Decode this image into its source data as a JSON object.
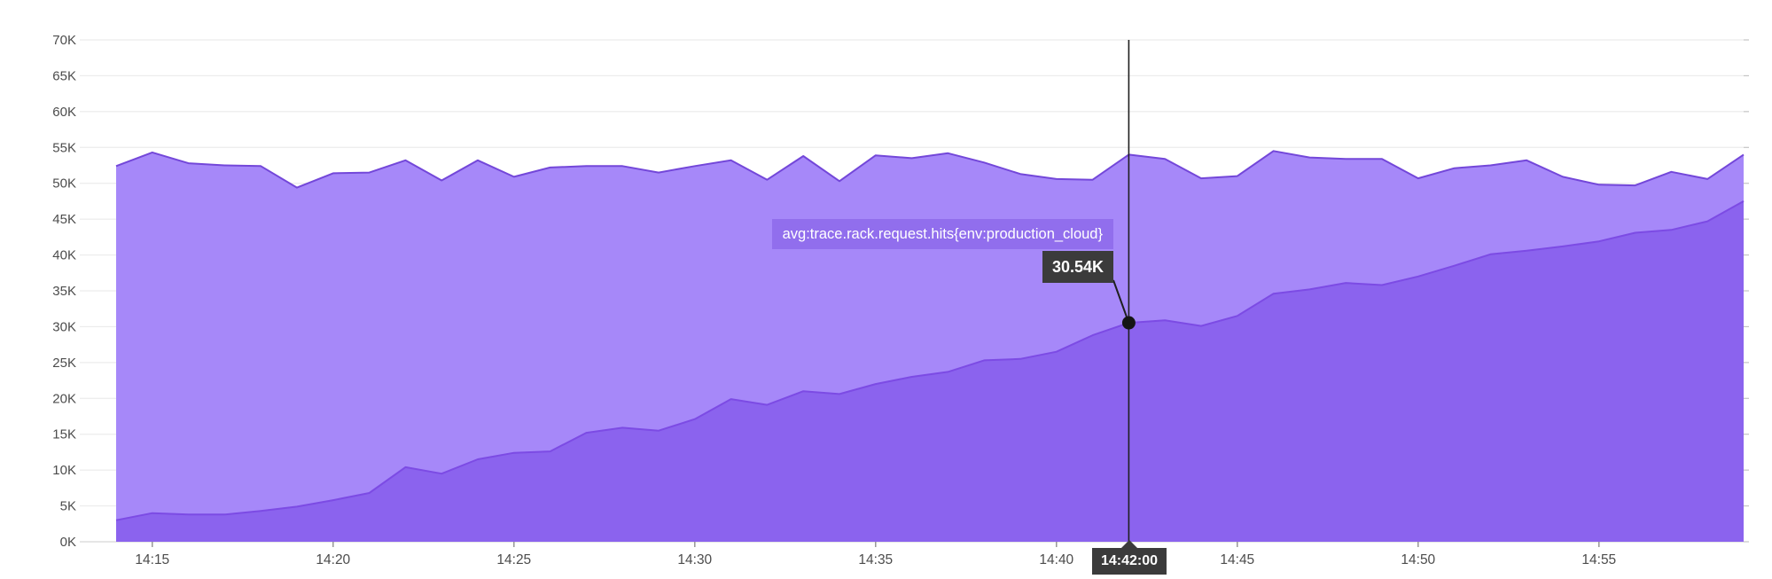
{
  "colors": {
    "background": "#ffffff",
    "grid_line": "#ececec",
    "axis_line": "#d6d6d6",
    "axis_text": "#4c4c4c",
    "tick_mark": "#8f8f8f",
    "crosshair": "#1f1f1f",
    "badge_bg": "#3b3b3b",
    "metric_label_bg": "rgba(143,107,235,0.92)"
  },
  "tooltip": {
    "metric_label": "avg:trace.rack.request.hits{env:production_cloud}",
    "value_label": "30.54K",
    "time_label": "14:42:00"
  },
  "chart_data": {
    "type": "area",
    "title": "",
    "xlabel": "",
    "ylabel": "",
    "unit": "K (thousands of hits)",
    "grid": true,
    "legend": "none",
    "ylim": [
      0,
      70
    ],
    "ytick_labels": [
      "0K",
      "5K",
      "10K",
      "15K",
      "20K",
      "25K",
      "30K",
      "35K",
      "40K",
      "45K",
      "50K",
      "55K",
      "60K",
      "65K",
      "70K"
    ],
    "xtick_labels": [
      "14:15",
      "14:20",
      "14:25",
      "14:30",
      "14:35",
      "14:40",
      "14:45",
      "14:50",
      "14:55"
    ],
    "x": [
      "14:14",
      "14:15",
      "14:16",
      "14:17",
      "14:18",
      "14:19",
      "14:20",
      "14:21",
      "14:22",
      "14:23",
      "14:24",
      "14:25",
      "14:26",
      "14:27",
      "14:28",
      "14:29",
      "14:30",
      "14:31",
      "14:32",
      "14:33",
      "14:34",
      "14:35",
      "14:36",
      "14:37",
      "14:38",
      "14:39",
      "14:40",
      "14:41",
      "14:42",
      "14:43",
      "14:44",
      "14:45",
      "14:46",
      "14:47",
      "14:48",
      "14:49",
      "14:50",
      "14:51",
      "14:52",
      "14:53",
      "14:54",
      "14:55",
      "14:56",
      "14:57",
      "14:58",
      "14:59"
    ],
    "series": [
      {
        "id": "total-request-hits",
        "name": "",
        "fill": "#a688f9",
        "stroke": "#7347d9",
        "values": [
          52.4,
          54.3,
          52.8,
          52.5,
          52.4,
          49.4,
          51.4,
          51.5,
          53.2,
          50.4,
          53.2,
          50.9,
          52.2,
          52.4,
          52.4,
          51.5,
          52.4,
          53.2,
          50.5,
          53.8,
          50.3,
          53.9,
          53.5,
          54.2,
          52.9,
          51.3,
          50.6,
          50.5,
          54.0,
          53.4,
          50.7,
          51.0,
          54.5,
          53.6,
          53.4,
          53.4,
          50.7,
          52.1,
          52.5,
          53.2,
          50.9,
          49.8,
          49.7,
          51.6,
          50.6,
          54.0
        ]
      },
      {
        "id": "production-cloud-hits",
        "name": "avg:trace.rack.request.hits{env:production_cloud}",
        "fill": "#8b63ee",
        "stroke": "#7c4be4",
        "values": [
          3.0,
          4.0,
          3.8,
          3.8,
          4.3,
          4.9,
          5.8,
          6.8,
          10.4,
          9.5,
          11.5,
          12.4,
          12.6,
          15.2,
          15.9,
          15.5,
          17.1,
          19.9,
          19.1,
          21.0,
          20.6,
          22.0,
          23.0,
          23.7,
          25.3,
          25.5,
          26.5,
          28.8,
          30.54,
          30.9,
          30.1,
          31.5,
          34.6,
          35.2,
          36.1,
          35.8,
          37.0,
          38.5,
          40.1,
          40.6,
          41.2,
          41.9,
          43.1,
          43.5,
          44.7,
          47.5
        ]
      }
    ],
    "hover": {
      "time": "14:42",
      "time_label": "14:42:00",
      "series": "avg:trace.rack.request.hits{env:production_cloud}",
      "value": 30.54,
      "value_label": "30.54K"
    }
  }
}
